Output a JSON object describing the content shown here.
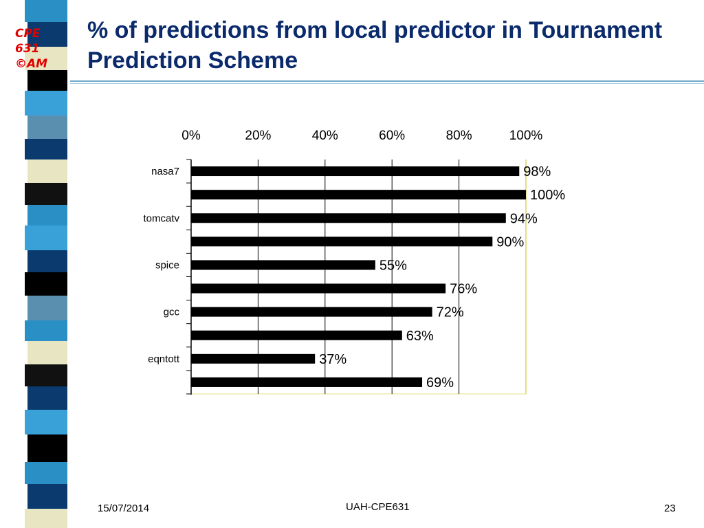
{
  "slide": {
    "title": "% of predictions from local predictor in Tournament Prediction Scheme",
    "logo_lines": [
      "CPE",
      "631",
      "©AM"
    ],
    "footer_date": "15/07/2014",
    "footer_center": "UAH-CPE631",
    "page_number": "23",
    "colors": {
      "title": "#0a2a6b",
      "logo": "#e00000",
      "bar": "#000000",
      "plot_border": "#e0e088",
      "stripe": [
        "#2a8fc4",
        "#0a3a6e",
        "#e8e6c2",
        "#000000",
        "#3aa0d8",
        "#5b8fb0",
        "#111111"
      ]
    }
  },
  "chart_data": {
    "type": "bar",
    "orientation": "horizontal",
    "title": "",
    "xlabel": "",
    "ylabel": "",
    "xlim": [
      0,
      100
    ],
    "x_ticks": [
      "0%",
      "20%",
      "40%",
      "60%",
      "80%",
      "100%"
    ],
    "x_axis_position": "top",
    "grid": "vertical",
    "legend": "none",
    "categories": [
      "nasa7",
      "",
      "tomcatv",
      "",
      "spice",
      "",
      "gcc",
      "",
      "eqntott",
      ""
    ],
    "values": [
      98,
      100,
      94,
      90,
      55,
      76,
      72,
      63,
      37,
      69
    ],
    "value_labels": [
      "98%",
      "100%",
      "94%",
      "90%",
      "55%",
      "76%",
      "72%",
      "63%",
      "37%",
      "69%"
    ]
  }
}
